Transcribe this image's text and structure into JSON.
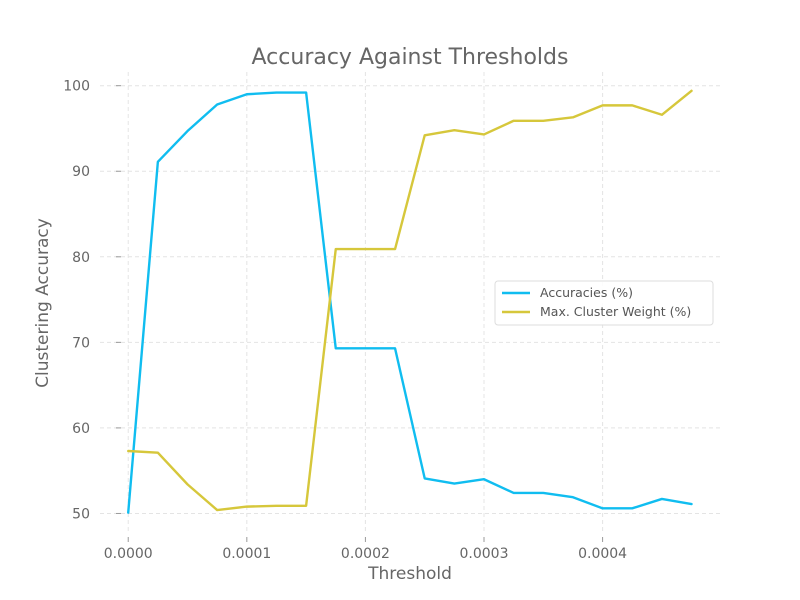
{
  "chart_data": {
    "type": "line",
    "title": "Accuracy Against Thresholds",
    "xlabel": "Threshold",
    "ylabel": "Clustering Accuracy",
    "x": [
      0.0,
      2.5e-05,
      5e-05,
      7.5e-05,
      0.0001,
      0.000125,
      0.00015,
      0.000175,
      0.0002,
      0.000225,
      0.00025,
      0.000275,
      0.0003,
      0.000325,
      0.00035,
      0.000375,
      0.0004,
      0.000425,
      0.00045,
      0.000475
    ],
    "xlim": [
      -2.38e-05,
      0.000499
    ],
    "ylim": [
      47.6,
      101.6
    ],
    "x_ticks": [
      0.0,
      0.0001,
      0.0002,
      0.0003,
      0.0004
    ],
    "x_tick_labels": [
      "0.0000",
      "0.0001",
      "0.0002",
      "0.0003",
      "0.0004"
    ],
    "y_ticks": [
      50,
      60,
      70,
      80,
      90,
      100
    ],
    "y_tick_labels": [
      "50",
      "60",
      "70",
      "80",
      "90",
      "100"
    ],
    "grid": true,
    "legend_position": "center-right",
    "series": [
      {
        "name": "Accuracies (%)",
        "color": "#10bdf0",
        "values": [
          50.1,
          91.1,
          94.7,
          97.8,
          99.0,
          99.2,
          99.2,
          69.3,
          69.3,
          69.3,
          54.1,
          53.5,
          54.0,
          52.4,
          52.4,
          51.9,
          50.6,
          50.6,
          51.7,
          51.1
        ]
      },
      {
        "name": "Max. Cluster Weight (%)",
        "color": "#d6c73b",
        "values": [
          57.3,
          57.1,
          53.4,
          50.4,
          50.8,
          50.9,
          50.9,
          80.9,
          80.9,
          80.9,
          94.2,
          94.8,
          94.3,
          95.9,
          95.9,
          96.3,
          97.7,
          97.7,
          96.6,
          99.4
        ]
      }
    ]
  }
}
